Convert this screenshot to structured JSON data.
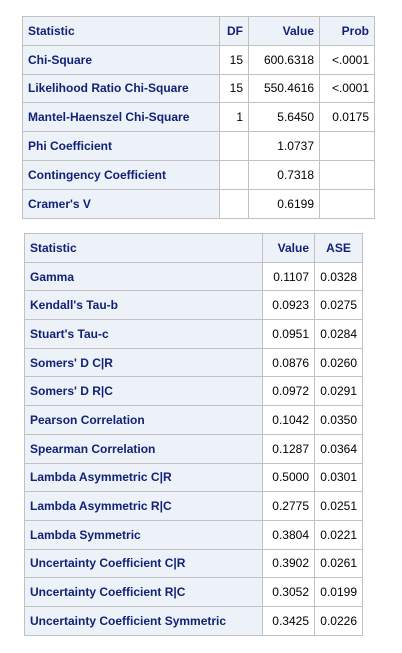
{
  "table1": {
    "headers": [
      "Statistic",
      "DF",
      "Value",
      "Prob"
    ],
    "rows": [
      {
        "statistic": "Chi-Square",
        "df": "15",
        "value": "600.6318",
        "prob": "<.0001"
      },
      {
        "statistic": "Likelihood Ratio Chi-Square",
        "df": "15",
        "value": "550.4616",
        "prob": "<.0001"
      },
      {
        "statistic": "Mantel-Haenszel Chi-Square",
        "df": "1",
        "value": "5.6450",
        "prob": "0.0175"
      },
      {
        "statistic": "Phi Coefficient",
        "df": "",
        "value": "1.0737",
        "prob": ""
      },
      {
        "statistic": "Contingency Coefficient",
        "df": "",
        "value": "0.7318",
        "prob": ""
      },
      {
        "statistic": "Cramer's V",
        "df": "",
        "value": "0.6199",
        "prob": ""
      }
    ]
  },
  "table2": {
    "headers": [
      "Statistic",
      "Value",
      "ASE"
    ],
    "rows": [
      {
        "statistic": "Gamma",
        "value": "0.1107",
        "ase": "0.0328"
      },
      {
        "statistic": "Kendall's Tau-b",
        "value": "0.0923",
        "ase": "0.0275"
      },
      {
        "statistic": "Stuart's Tau-c",
        "value": "0.0951",
        "ase": "0.0284"
      },
      {
        "statistic": "Somers' D C|R",
        "value": "0.0876",
        "ase": "0.0260"
      },
      {
        "statistic": "Somers' D R|C",
        "value": "0.0972",
        "ase": "0.0291"
      },
      {
        "statistic": "Pearson Correlation",
        "value": "0.1042",
        "ase": "0.0350"
      },
      {
        "statistic": "Spearman Correlation",
        "value": "0.1287",
        "ase": "0.0364"
      },
      {
        "statistic": "Lambda Asymmetric C|R",
        "value": "0.5000",
        "ase": "0.0301"
      },
      {
        "statistic": "Lambda Asymmetric R|C",
        "value": "0.2775",
        "ase": "0.0251"
      },
      {
        "statistic": "Lambda Symmetric",
        "value": "0.3804",
        "ase": "0.0221"
      },
      {
        "statistic": "Uncertainty Coefficient C|R",
        "value": "0.3902",
        "ase": "0.0261"
      },
      {
        "statistic": "Uncertainty Coefficient R|C",
        "value": "0.3052",
        "ase": "0.0199"
      },
      {
        "statistic": "Uncertainty Coefficient Symmetric",
        "value": "0.3425",
        "ase": "0.0226"
      }
    ]
  }
}
